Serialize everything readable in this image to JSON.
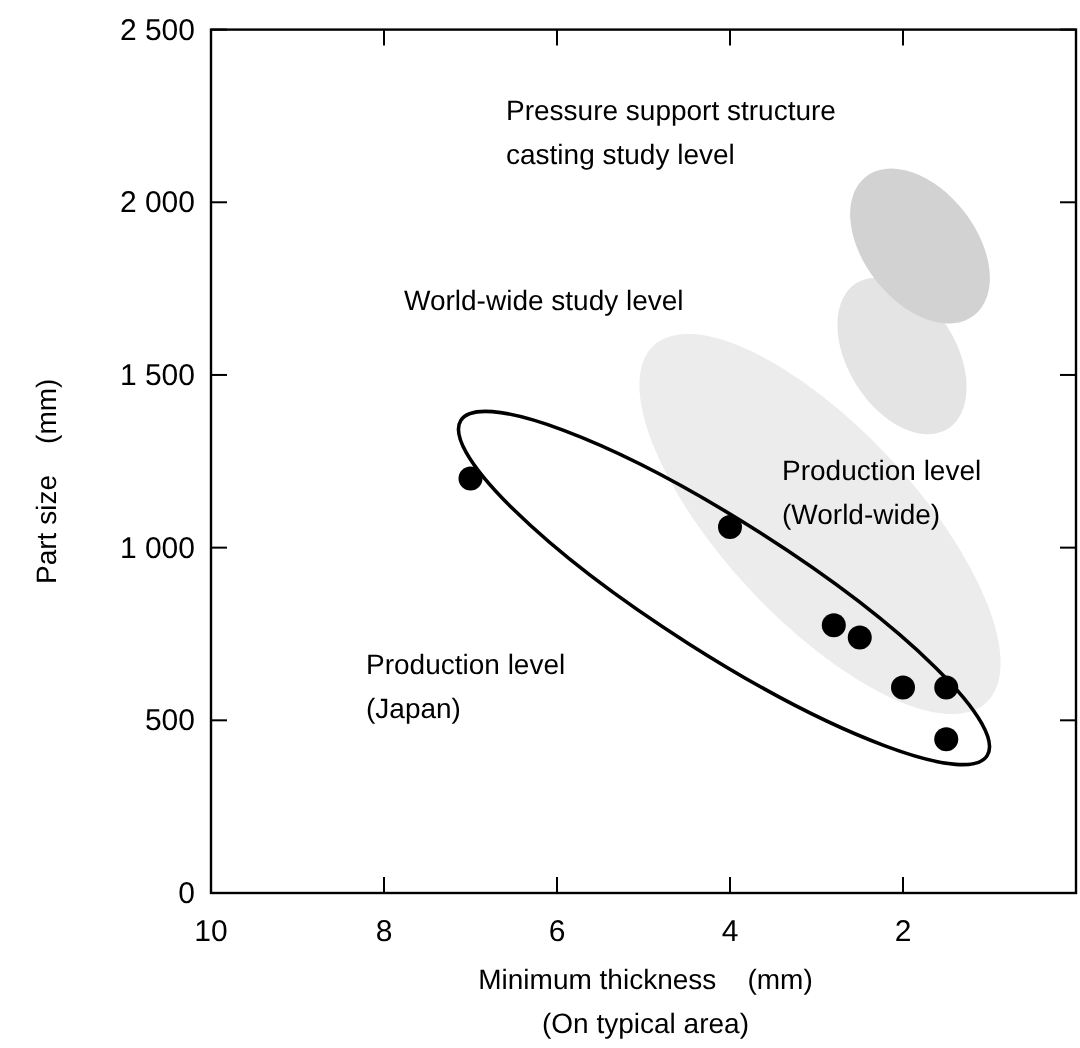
{
  "chart_data": {
    "type": "scatter",
    "xlabel": "Minimum thickness    (mm)\n(On typical area)",
    "ylabel": "Part size    (mm)",
    "x": [
      7,
      4,
      2.8,
      2.5,
      2,
      1.5,
      1.5
    ],
    "values": [
      1200,
      1060,
      775,
      740,
      595,
      595,
      445
    ],
    "color": "#000000",
    "marker": "circle",
    "xlim": [
      10,
      0
    ],
    "xticks": [
      10,
      8,
      6,
      4,
      2
    ],
    "ylim": [
      0,
      2500
    ],
    "yticks": [
      0,
      500,
      {
        "value": 1000,
        "label": "1 000"
      },
      {
        "value": 1500,
        "label": "1 500"
      },
      {
        "value": 2000,
        "label": "2 000"
      },
      {
        "value": 2500,
        "label": "2 500"
      }
    ],
    "annotations": [
      "Pressure support structure\ncasting study level",
      "World-wide study level",
      "Production level\n(World-wide)",
      "Production level\n(Japan)"
    ],
    "grid": false
  }
}
